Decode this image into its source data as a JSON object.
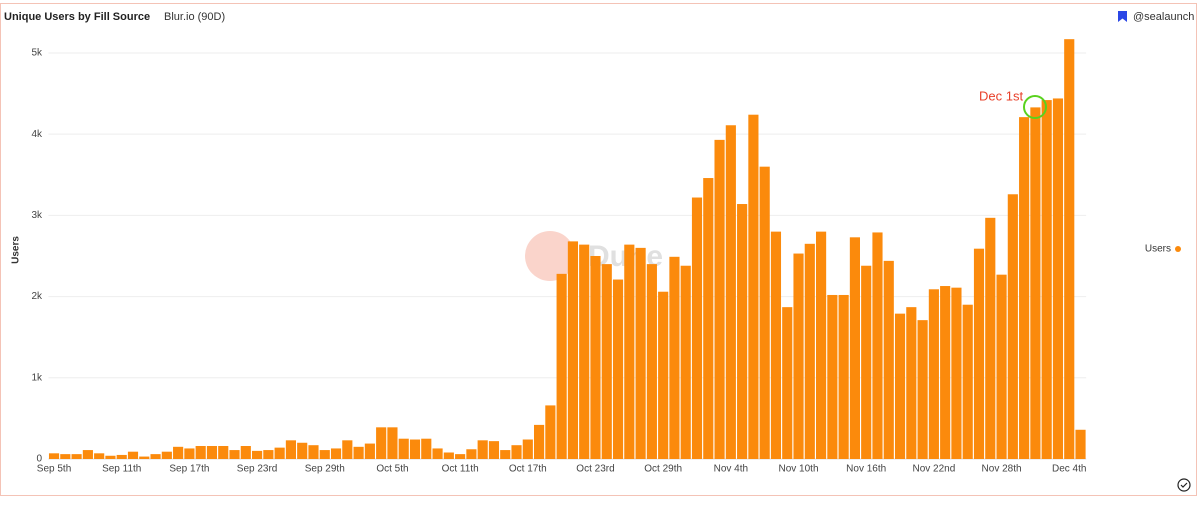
{
  "chart_data": {
    "type": "bar",
    "title": "Unique Users by Fill Source",
    "subtitle": "Blur.io (90D)",
    "source": "@sealaunch",
    "watermark": "Dune",
    "y_label": "Users",
    "annotation": "Dec 1st",
    "legend": "right",
    "grid": true,
    "categories": [
      "Sep 5th",
      null,
      null,
      null,
      null,
      null,
      "Sep 11th",
      null,
      null,
      null,
      null,
      null,
      "Sep 17th",
      null,
      null,
      null,
      null,
      null,
      "Sep 23rd",
      null,
      null,
      null,
      null,
      null,
      "Sep 29th",
      null,
      null,
      null,
      null,
      null,
      "Oct 5th",
      null,
      null,
      null,
      null,
      null,
      "Oct 11th",
      null,
      null,
      null,
      null,
      null,
      "Oct 17th",
      null,
      null,
      null,
      null,
      null,
      "Oct 23rd",
      null,
      null,
      null,
      null,
      null,
      "Oct 29th",
      null,
      null,
      null,
      null,
      null,
      "Nov 4th",
      null,
      null,
      null,
      null,
      null,
      "Nov 10th",
      null,
      null,
      null,
      null,
      null,
      "Nov 16th",
      null,
      null,
      null,
      null,
      null,
      "Nov 22nd",
      null,
      null,
      null,
      null,
      null,
      "Nov 28th",
      null,
      null,
      null,
      null,
      null,
      "Dec 4th",
      null
    ],
    "series": [
      {
        "name": "Users",
        "color": "#fb8a0c",
        "values": [
          70,
          60,
          60,
          110,
          70,
          40,
          50,
          90,
          30,
          60,
          90,
          150,
          130,
          160,
          160,
          160,
          110,
          160,
          100,
          110,
          140,
          230,
          200,
          170,
          110,
          130,
          230,
          150,
          190,
          390,
          390,
          250,
          240,
          250,
          130,
          80,
          60,
          120,
          230,
          220,
          110,
          170,
          240,
          420,
          660,
          2280,
          2680,
          2640,
          2500,
          2400,
          2210,
          2640,
          2600,
          2400,
          2060,
          2490,
          2380,
          3220,
          3460,
          3930,
          4110,
          3140,
          4240,
          3600,
          2800,
          1870,
          2530,
          2650,
          2800,
          2020,
          2020,
          2730,
          2380,
          2790,
          2440,
          1790,
          1870,
          1710,
          2090,
          2130,
          2110,
          1900,
          2590,
          2970,
          2270,
          3260,
          4210,
          4330,
          4420,
          4440,
          5170,
          360
        ]
      }
    ],
    "ylim": [
      0,
      5400
    ],
    "yticks": [
      0,
      {
        "value": 1000,
        "label": "1k"
      },
      {
        "value": 2000,
        "label": "2k"
      },
      {
        "value": 3000,
        "label": "3k"
      },
      {
        "value": 4000,
        "label": "4k"
      },
      {
        "value": 5000,
        "label": "5k"
      }
    ]
  }
}
